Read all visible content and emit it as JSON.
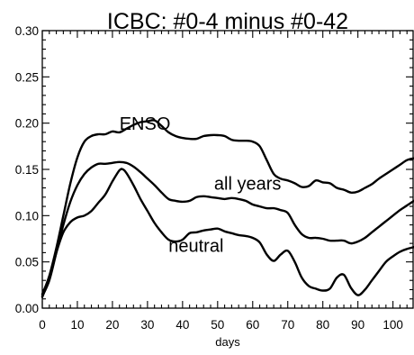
{
  "chart_data": {
    "type": "line",
    "title": "ICBC: #0-4 minus #0-42",
    "xlabel": "days",
    "ylabel": "",
    "xlim": [
      0,
      106
    ],
    "ylim": [
      0.0,
      0.3
    ],
    "xticks": [
      0,
      10,
      20,
      30,
      40,
      50,
      60,
      70,
      80,
      90,
      100
    ],
    "xtick_labels": [
      "0",
      "10",
      "20",
      "30",
      "40",
      "50",
      "60",
      "70",
      "80",
      "90",
      "100"
    ],
    "yticks": [
      0.0,
      0.05,
      0.1,
      0.15,
      0.2,
      0.25,
      0.3
    ],
    "ytick_labels": [
      "0.00",
      "0.05",
      "0.10",
      "0.15",
      "0.20",
      "0.25",
      "0.30"
    ],
    "grid": false,
    "legend": "none",
    "series": [
      {
        "name": "ENSO",
        "label_at": [
          22,
          0.193
        ],
        "x": [
          0,
          2,
          4,
          6,
          8,
          10,
          12,
          14,
          16,
          18,
          20,
          22,
          24,
          26,
          28,
          30,
          32,
          34,
          36,
          38,
          40,
          42,
          44,
          46,
          48,
          50,
          52,
          54,
          56,
          58,
          60,
          62,
          64,
          66,
          68,
          70,
          72,
          74,
          76,
          78,
          80,
          82,
          84,
          86,
          88,
          90,
          92,
          94,
          96,
          98,
          100,
          102,
          104,
          106
        ],
        "y": [
          0.015,
          0.035,
          0.065,
          0.1,
          0.135,
          0.163,
          0.18,
          0.186,
          0.188,
          0.188,
          0.191,
          0.19,
          0.194,
          0.198,
          0.201,
          0.202,
          0.203,
          0.197,
          0.19,
          0.186,
          0.184,
          0.183,
          0.183,
          0.186,
          0.187,
          0.187,
          0.186,
          0.182,
          0.181,
          0.181,
          0.18,
          0.175,
          0.16,
          0.145,
          0.14,
          0.138,
          0.135,
          0.131,
          0.132,
          0.138,
          0.136,
          0.135,
          0.13,
          0.128,
          0.125,
          0.126,
          0.13,
          0.134,
          0.14,
          0.145,
          0.15,
          0.155,
          0.16,
          0.162
        ]
      },
      {
        "name": "all years",
        "label_at": [
          49,
          0.128
        ],
        "x": [
          0,
          2,
          4,
          6,
          8,
          10,
          12,
          14,
          16,
          18,
          20,
          22,
          24,
          26,
          28,
          30,
          32,
          34,
          36,
          38,
          40,
          42,
          44,
          46,
          48,
          50,
          52,
          54,
          56,
          58,
          60,
          62,
          64,
          66,
          68,
          70,
          72,
          74,
          76,
          78,
          80,
          82,
          84,
          86,
          88,
          90,
          92,
          94,
          96,
          98,
          100,
          102,
          104,
          106
        ],
        "y": [
          0.013,
          0.03,
          0.06,
          0.09,
          0.115,
          0.133,
          0.145,
          0.152,
          0.156,
          0.156,
          0.157,
          0.158,
          0.157,
          0.153,
          0.147,
          0.14,
          0.133,
          0.125,
          0.118,
          0.116,
          0.115,
          0.116,
          0.12,
          0.121,
          0.12,
          0.119,
          0.118,
          0.119,
          0.118,
          0.116,
          0.112,
          0.11,
          0.108,
          0.108,
          0.106,
          0.103,
          0.09,
          0.08,
          0.076,
          0.076,
          0.075,
          0.073,
          0.073,
          0.073,
          0.07,
          0.072,
          0.076,
          0.082,
          0.088,
          0.094,
          0.1,
          0.106,
          0.111,
          0.116
        ]
      },
      {
        "name": "neutral",
        "label_at": [
          36,
          0.061
        ],
        "x": [
          0,
          2,
          4,
          6,
          8,
          10,
          12,
          14,
          16,
          18,
          20,
          22,
          23,
          24,
          26,
          28,
          30,
          32,
          34,
          36,
          38,
          40,
          42,
          44,
          46,
          48,
          50,
          52,
          54,
          56,
          58,
          60,
          62,
          64,
          66,
          68,
          70,
          72,
          74,
          76,
          78,
          80,
          82,
          84,
          86,
          88,
          90,
          92,
          94,
          96,
          98,
          100,
          102,
          104,
          106
        ],
        "y": [
          0.012,
          0.032,
          0.06,
          0.082,
          0.093,
          0.098,
          0.1,
          0.105,
          0.114,
          0.123,
          0.137,
          0.149,
          0.15,
          0.146,
          0.133,
          0.118,
          0.105,
          0.092,
          0.082,
          0.074,
          0.072,
          0.074,
          0.081,
          0.082,
          0.084,
          0.085,
          0.086,
          0.083,
          0.081,
          0.079,
          0.078,
          0.076,
          0.071,
          0.058,
          0.051,
          0.058,
          0.062,
          0.05,
          0.033,
          0.024,
          0.021,
          0.019,
          0.021,
          0.033,
          0.036,
          0.022,
          0.014,
          0.02,
          0.03,
          0.04,
          0.05,
          0.056,
          0.061,
          0.064,
          0.066
        ]
      }
    ]
  }
}
